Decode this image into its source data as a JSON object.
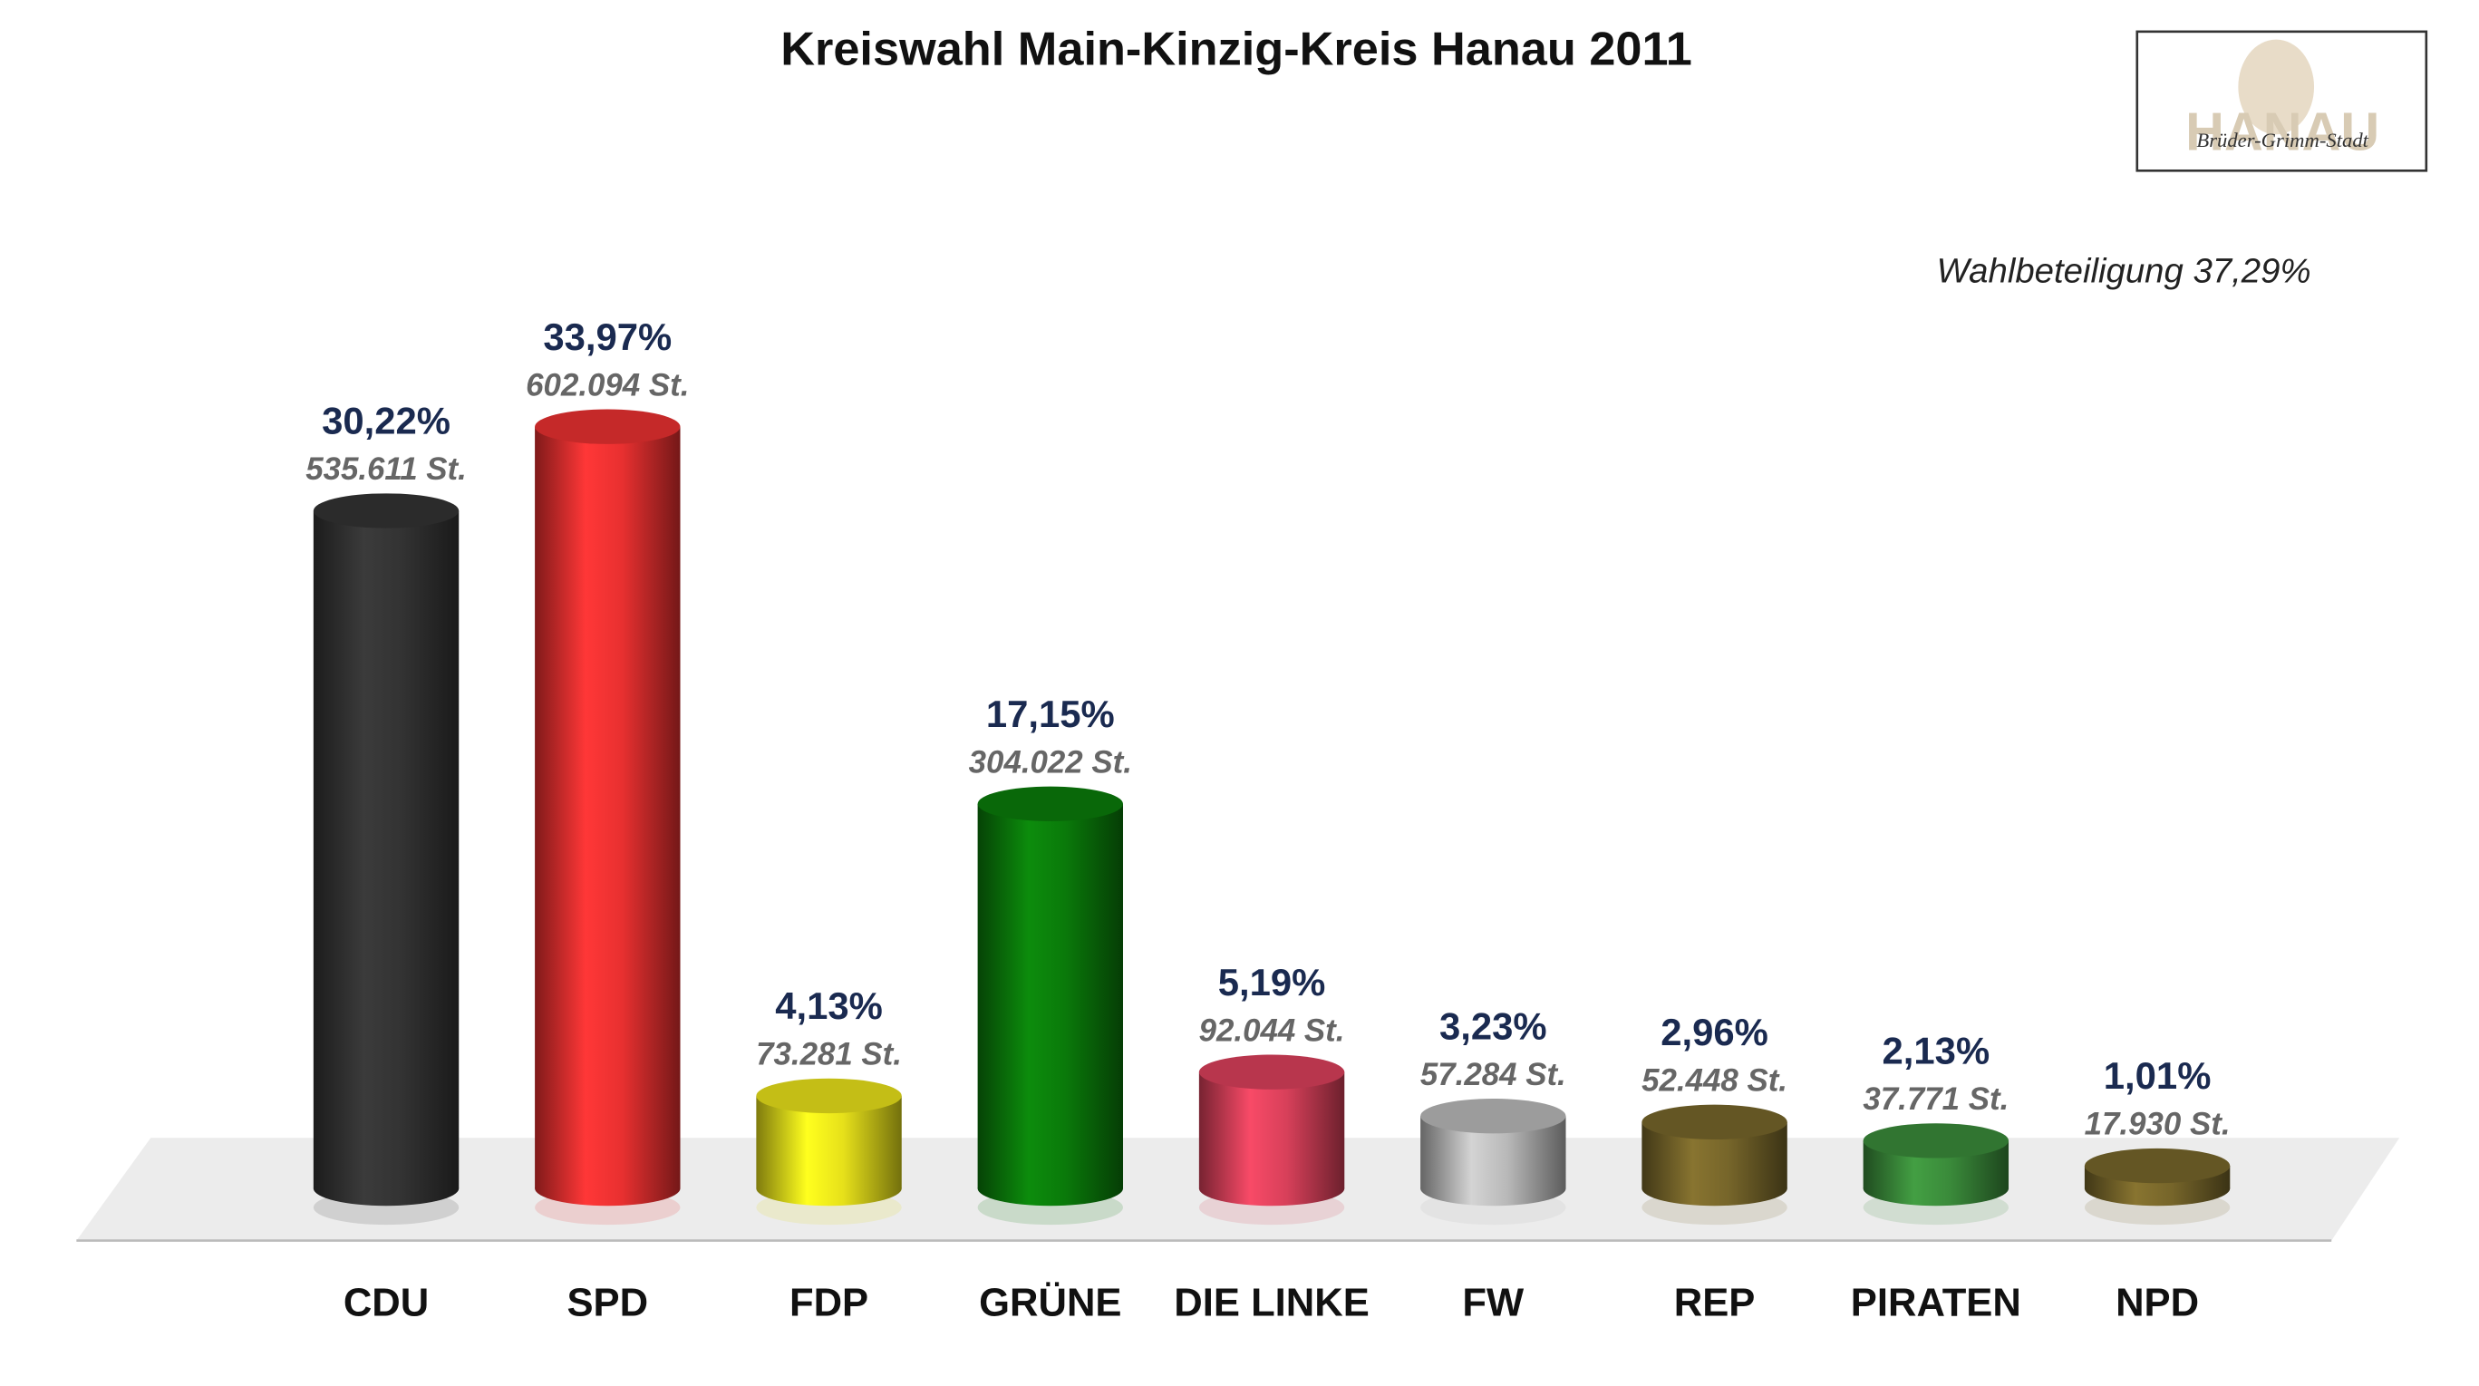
{
  "chart_data": {
    "type": "bar",
    "title": "Kreiswahl Main-Kinzig-Kreis Hanau 2011",
    "annotation": "Wahlbeteiligung 37,29%",
    "categories": [
      "CDU",
      "SPD",
      "FDP",
      "GRÜNE",
      "DIE LINKE",
      "FW",
      "REP",
      "PIRATEN",
      "NPD"
    ],
    "values": [
      30.22,
      33.97,
      4.13,
      17.15,
      5.19,
      3.23,
      2.96,
      2.13,
      1.01
    ],
    "value_labels": [
      "30,22%",
      "33,97%",
      "4,13%",
      "17,15%",
      "5,19%",
      "3,23%",
      "2,96%",
      "2,13%",
      "1,01%"
    ],
    "votes": [
      535611,
      602094,
      73281,
      304022,
      92044,
      57284,
      52448,
      37771,
      17930
    ],
    "votes_labels": [
      "535.611 St.",
      "602.094 St.",
      "73.281 St.",
      "304.022 St.",
      "92.044 St.",
      "57.284 St.",
      "52.448 St.",
      "37.771 St.",
      "17.930 St."
    ],
    "colors": [
      "#333333",
      "#e83030",
      "#e6e01a",
      "#0a7a0a",
      "#d8405a",
      "#b8b8b8",
      "#76652a",
      "#3a8a3a",
      "#76652a"
    ]
  },
  "logo": {
    "text": "HANAU",
    "subtitle": "Brüder-Grimm-Stadt"
  }
}
